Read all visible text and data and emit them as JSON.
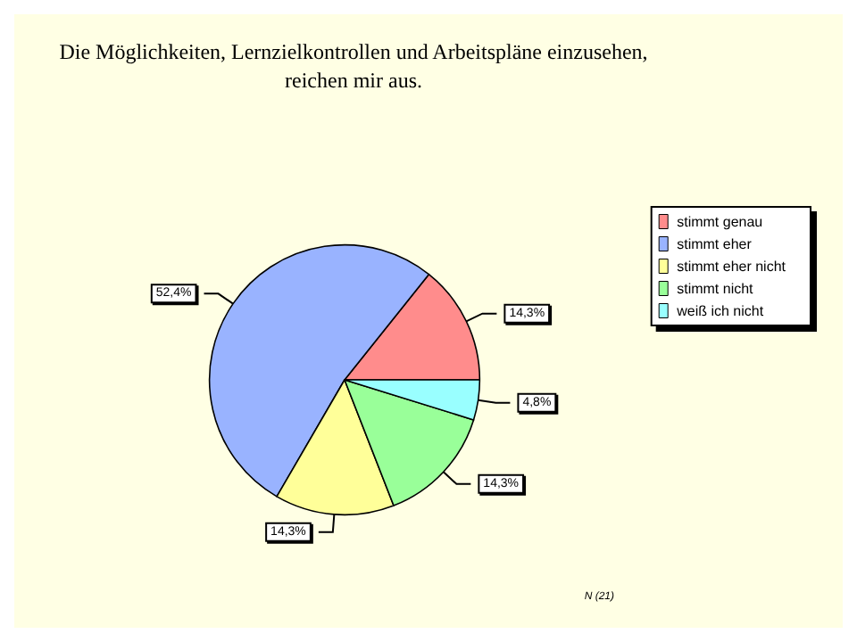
{
  "chart_data": {
    "type": "pie",
    "title": "Die Möglichkeiten, Lernzielkontrollen und Arbeitspläne einzusehen,\nreichen mir aus.",
    "categories": [
      "stimmt genau",
      "stimmt eher",
      "stimmt eher nicht",
      "stimmt nicht",
      "weiß ich nicht"
    ],
    "values": [
      14.3,
      52.4,
      14.3,
      14.3,
      4.8
    ],
    "value_labels": [
      "14,3%",
      "52,4%",
      "14,3%",
      "14,3%",
      "4,8%"
    ],
    "colors": [
      "#ff8c8c",
      "#99b3ff",
      "#ffff99",
      "#99ff99",
      "#99ffff"
    ],
    "legend": "right",
    "annotations": [
      "N (21)"
    ]
  }
}
